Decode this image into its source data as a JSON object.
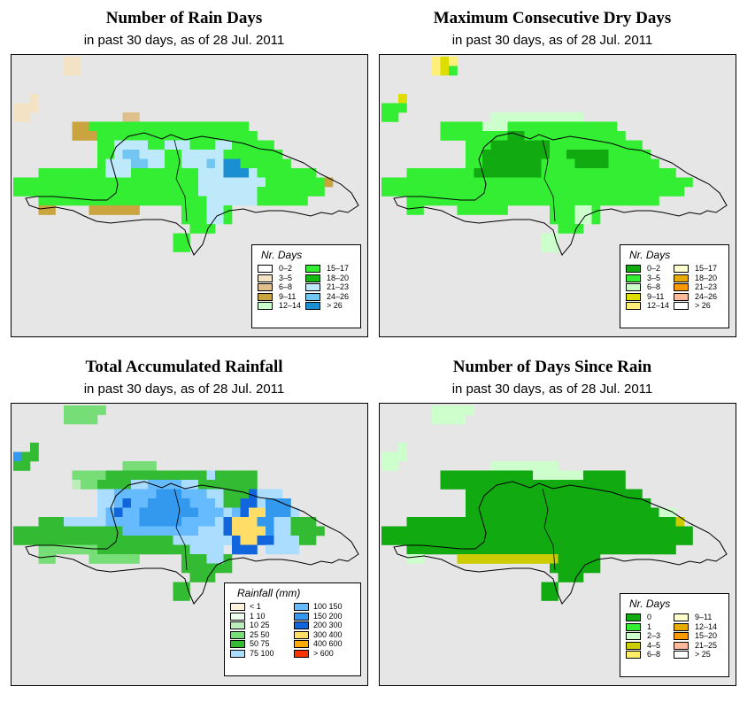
{
  "panels": [
    {
      "id": "rain-days",
      "title": "Number of Rain Days",
      "subtitle": "in past 30 days, as of  28 Jul. 2011",
      "legend": {
        "title": "Nr. Days",
        "items": [
          {
            "label": "0–2",
            "color": "#ffffff"
          },
          {
            "label": "3–5",
            "color": "#f3e3c4"
          },
          {
            "label": "6–8",
            "color": "#dfc08d"
          },
          {
            "label": "9–11",
            "color": "#c9a43f"
          },
          {
            "label": "12–14",
            "color": "#ccffcc"
          },
          {
            "label": "15–17",
            "color": "#33ee33"
          },
          {
            "label": "18–20",
            "color": "#11bb11"
          },
          {
            "label": "21–23",
            "color": "#bde9fb"
          },
          {
            "label": "24–26",
            "color": "#72c6f2"
          },
          {
            "label": "> 26",
            "color": "#1a8fd2"
          }
        ]
      }
    },
    {
      "id": "max-consecutive-dry-days",
      "title": "Maximum Consecutive Dry Days",
      "subtitle": "in past 30 days, as of  28 Jul. 2011",
      "legend": {
        "title": "Nr. Days",
        "items": [
          {
            "label": "0–2",
            "color": "#11aa11"
          },
          {
            "label": "3–5",
            "color": "#33ee33"
          },
          {
            "label": "6–8",
            "color": "#ccffcc"
          },
          {
            "label": "9–11",
            "color": "#dddd00"
          },
          {
            "label": "12–14",
            "color": "#ffee77"
          },
          {
            "label": "15–17",
            "color": "#ffffcc"
          },
          {
            "label": "18–20",
            "color": "#e6aa00"
          },
          {
            "label": "21–23",
            "color": "#ff9900"
          },
          {
            "label": "24–26",
            "color": "#ffbb99"
          },
          {
            "label": "> 26",
            "color": "#ffffff"
          }
        ]
      }
    },
    {
      "id": "total-accumulated-rainfall",
      "title": "Total Accumulated Rainfall",
      "subtitle": "in past 30 days, as of  28 Jul. 2011",
      "legend": {
        "title": "Rainfall (mm)",
        "items": [
          {
            "label": "< 1",
            "color": "#fff3dd"
          },
          {
            "label": "1    10",
            "color": "#eeffee"
          },
          {
            "label": "10    25",
            "color": "#bbeebb"
          },
          {
            "label": "25    50",
            "color": "#77dd77"
          },
          {
            "label": "50    75",
            "color": "#33bb33"
          },
          {
            "label": "75   100",
            "color": "#aaddff"
          },
          {
            "label": "100   150",
            "color": "#66bbff"
          },
          {
            "label": "150   200",
            "color": "#3399ee"
          },
          {
            "label": "200   300",
            "color": "#1166dd"
          },
          {
            "label": "300   400",
            "color": "#ffdd66"
          },
          {
            "label": "400   600",
            "color": "#ffaa00"
          },
          {
            "label": "> 600",
            "color": "#ff3300"
          }
        ]
      }
    },
    {
      "id": "days-since-rain",
      "title": "Number of Days Since Rain",
      "subtitle": "in past 30 days, as of  28 Jul. 2011",
      "legend": {
        "title": "Nr. Days",
        "items": [
          {
            "label": "0",
            "color": "#11aa11"
          },
          {
            "label": "1",
            "color": "#33ee33"
          },
          {
            "label": "2–3",
            "color": "#ccffcc"
          },
          {
            "label": "4–5",
            "color": "#cccc00"
          },
          {
            "label": "6–8",
            "color": "#ffee66"
          },
          {
            "label": "9–11",
            "color": "#ffffcc"
          },
          {
            "label": "12–14",
            "color": "#e6aa00"
          },
          {
            "label": "15–20",
            "color": "#ff9900"
          },
          {
            "label": "21–25",
            "color": "#ffbb99"
          },
          {
            "label": "> 25",
            "color": "#ffffff"
          }
        ]
      }
    }
  ]
}
